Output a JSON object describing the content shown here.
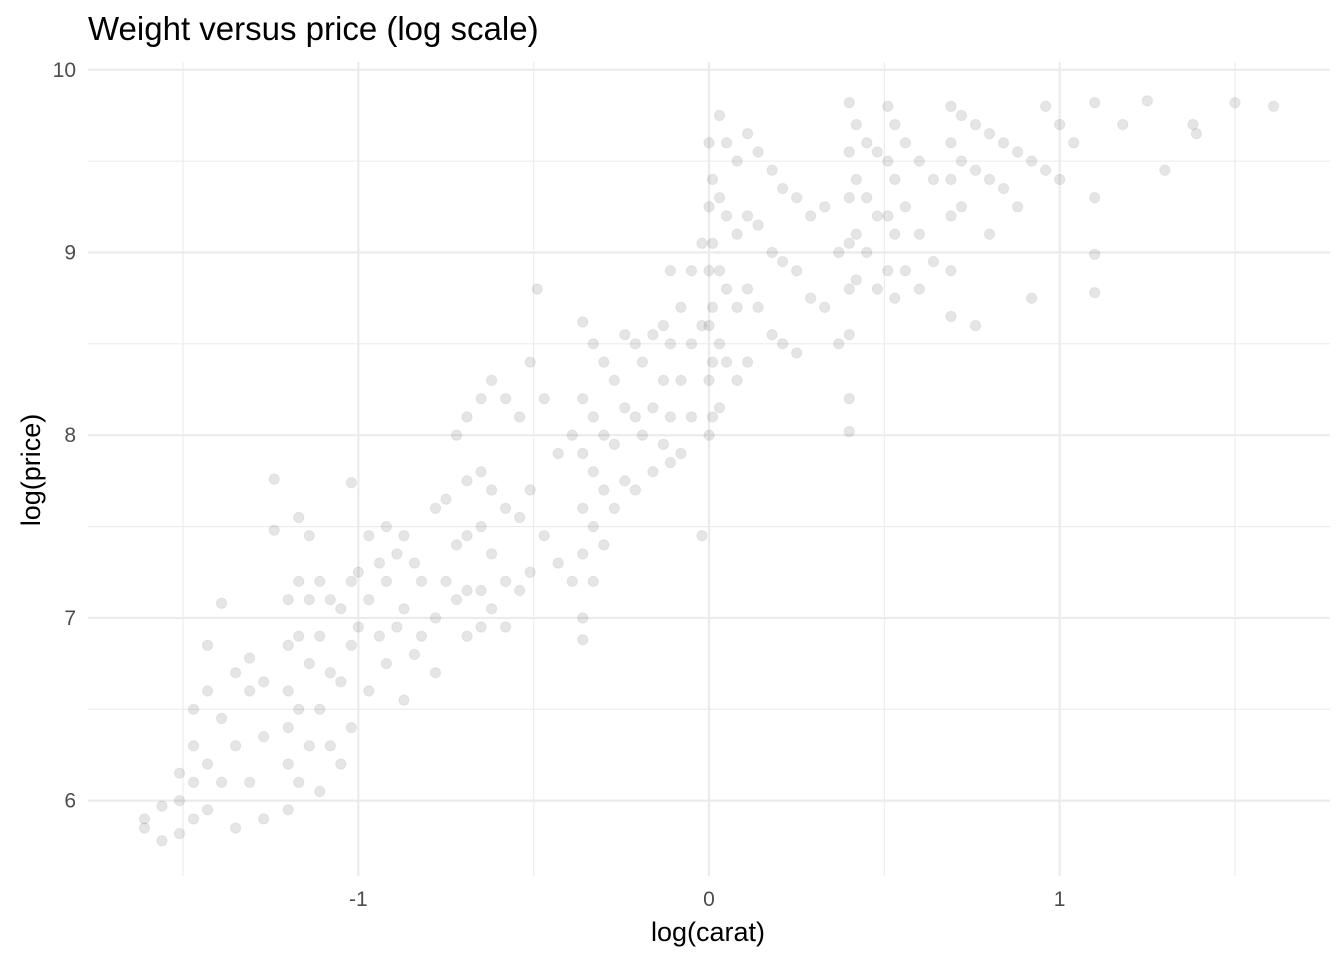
{
  "chart_data": {
    "type": "scatter",
    "title": "Weight versus price (log scale)",
    "xlabel": "log(carat)",
    "ylabel": "log(price)",
    "xlim": [
      -1.61,
      1.61
    ],
    "ylim": [
      5.79,
      9.84
    ],
    "x_ticks": [
      -1,
      0,
      1
    ],
    "x_tick_labels": [
      "-1",
      "0",
      "1"
    ],
    "x_minor_ticks": [
      -1.5,
      -0.5,
      0.5,
      1.5
    ],
    "y_ticks": [
      6,
      7,
      8,
      9,
      10
    ],
    "y_tick_labels": [
      "6",
      "7",
      "8",
      "9",
      "10"
    ],
    "y_minor_ticks": [
      6.5,
      7.5,
      8.5,
      9.5
    ],
    "grid": true,
    "point_color": "#000000",
    "point_alpha": 0.1,
    "series": [
      {
        "points": [
          [
            -1.61,
            5.9
          ],
          [
            -1.61,
            5.85
          ],
          [
            -1.56,
            5.97
          ],
          [
            -1.56,
            5.78
          ],
          [
            -1.51,
            6.15
          ],
          [
            -1.51,
            5.82
          ],
          [
            -1.51,
            6.0
          ],
          [
            -1.47,
            6.5
          ],
          [
            -1.47,
            6.3
          ],
          [
            -1.47,
            6.1
          ],
          [
            -1.47,
            5.9
          ],
          [
            -1.43,
            6.6
          ],
          [
            -1.43,
            6.2
          ],
          [
            -1.43,
            5.95
          ],
          [
            -1.43,
            6.85
          ],
          [
            -1.39,
            7.08
          ],
          [
            -1.39,
            6.45
          ],
          [
            -1.39,
            6.1
          ],
          [
            -1.35,
            6.7
          ],
          [
            -1.35,
            6.3
          ],
          [
            -1.35,
            5.85
          ],
          [
            -1.31,
            6.6
          ],
          [
            -1.31,
            6.1
          ],
          [
            -1.31,
            6.78
          ],
          [
            -1.27,
            6.65
          ],
          [
            -1.27,
            6.35
          ],
          [
            -1.27,
            5.9
          ],
          [
            -1.24,
            7.76
          ],
          [
            -1.24,
            7.48
          ],
          [
            -1.2,
            7.1
          ],
          [
            -1.2,
            6.85
          ],
          [
            -1.2,
            6.6
          ],
          [
            -1.2,
            6.4
          ],
          [
            -1.2,
            6.2
          ],
          [
            -1.2,
            5.95
          ],
          [
            -1.17,
            7.55
          ],
          [
            -1.17,
            7.2
          ],
          [
            -1.17,
            6.9
          ],
          [
            -1.17,
            6.5
          ],
          [
            -1.17,
            6.1
          ],
          [
            -1.14,
            7.45
          ],
          [
            -1.14,
            7.1
          ],
          [
            -1.14,
            6.75
          ],
          [
            -1.14,
            6.3
          ],
          [
            -1.11,
            7.2
          ],
          [
            -1.11,
            6.9
          ],
          [
            -1.11,
            6.5
          ],
          [
            -1.11,
            6.05
          ],
          [
            -1.08,
            7.1
          ],
          [
            -1.08,
            6.7
          ],
          [
            -1.08,
            6.3
          ],
          [
            -1.05,
            7.05
          ],
          [
            -1.05,
            6.65
          ],
          [
            -1.05,
            6.2
          ],
          [
            -1.02,
            7.74
          ],
          [
            -1.02,
            7.2
          ],
          [
            -1.02,
            6.85
          ],
          [
            -1.02,
            6.4
          ],
          [
            -1.0,
            7.25
          ],
          [
            -1.0,
            6.95
          ],
          [
            -0.97,
            7.45
          ],
          [
            -0.97,
            7.1
          ],
          [
            -0.97,
            6.6
          ],
          [
            -0.94,
            7.3
          ],
          [
            -0.94,
            6.9
          ],
          [
            -0.92,
            7.5
          ],
          [
            -0.92,
            7.2
          ],
          [
            -0.92,
            6.75
          ],
          [
            -0.89,
            7.35
          ],
          [
            -0.89,
            6.95
          ],
          [
            -0.87,
            7.45
          ],
          [
            -0.87,
            7.05
          ],
          [
            -0.87,
            6.55
          ],
          [
            -0.84,
            7.3
          ],
          [
            -0.84,
            6.8
          ],
          [
            -0.82,
            7.2
          ],
          [
            -0.82,
            6.9
          ],
          [
            -0.78,
            7.6
          ],
          [
            -0.78,
            7.0
          ],
          [
            -0.78,
            6.7
          ],
          [
            -0.75,
            7.65
          ],
          [
            -0.75,
            7.2
          ],
          [
            -0.72,
            8.0
          ],
          [
            -0.72,
            7.4
          ],
          [
            -0.72,
            7.1
          ],
          [
            -0.69,
            8.1
          ],
          [
            -0.69,
            7.75
          ],
          [
            -0.69,
            7.45
          ],
          [
            -0.69,
            7.15
          ],
          [
            -0.69,
            6.9
          ],
          [
            -0.65,
            8.2
          ],
          [
            -0.65,
            7.8
          ],
          [
            -0.65,
            7.5
          ],
          [
            -0.65,
            7.15
          ],
          [
            -0.65,
            6.95
          ],
          [
            -0.62,
            8.3
          ],
          [
            -0.62,
            7.7
          ],
          [
            -0.62,
            7.35
          ],
          [
            -0.62,
            7.05
          ],
          [
            -0.58,
            8.2
          ],
          [
            -0.58,
            7.6
          ],
          [
            -0.58,
            7.2
          ],
          [
            -0.58,
            6.95
          ],
          [
            -0.54,
            8.1
          ],
          [
            -0.54,
            7.55
          ],
          [
            -0.54,
            7.15
          ],
          [
            -0.51,
            8.4
          ],
          [
            -0.51,
            7.7
          ],
          [
            -0.51,
            7.25
          ],
          [
            -0.49,
            8.8
          ],
          [
            -0.47,
            8.2
          ],
          [
            -0.47,
            7.45
          ],
          [
            -0.43,
            7.9
          ],
          [
            -0.43,
            7.3
          ],
          [
            -0.39,
            8.0
          ],
          [
            -0.39,
            7.2
          ],
          [
            -0.36,
            8.62
          ],
          [
            -0.36,
            8.2
          ],
          [
            -0.36,
            7.9
          ],
          [
            -0.36,
            7.6
          ],
          [
            -0.36,
            7.35
          ],
          [
            -0.36,
            7.0
          ],
          [
            -0.36,
            6.88
          ],
          [
            -0.33,
            8.5
          ],
          [
            -0.33,
            8.1
          ],
          [
            -0.33,
            7.8
          ],
          [
            -0.33,
            7.5
          ],
          [
            -0.33,
            7.2
          ],
          [
            -0.3,
            8.4
          ],
          [
            -0.3,
            8.0
          ],
          [
            -0.3,
            7.7
          ],
          [
            -0.3,
            7.4
          ],
          [
            -0.27,
            8.3
          ],
          [
            -0.27,
            7.95
          ],
          [
            -0.27,
            7.6
          ],
          [
            -0.24,
            8.55
          ],
          [
            -0.24,
            8.15
          ],
          [
            -0.24,
            7.75
          ],
          [
            -0.21,
            8.5
          ],
          [
            -0.21,
            8.1
          ],
          [
            -0.21,
            7.7
          ],
          [
            -0.19,
            8.4
          ],
          [
            -0.19,
            8.0
          ],
          [
            -0.16,
            8.55
          ],
          [
            -0.16,
            8.15
          ],
          [
            -0.16,
            7.8
          ],
          [
            -0.13,
            8.6
          ],
          [
            -0.13,
            8.3
          ],
          [
            -0.13,
            7.95
          ],
          [
            -0.11,
            8.9
          ],
          [
            -0.11,
            8.5
          ],
          [
            -0.11,
            8.1
          ],
          [
            -0.11,
            7.85
          ],
          [
            -0.08,
            8.7
          ],
          [
            -0.08,
            8.3
          ],
          [
            -0.08,
            7.9
          ],
          [
            -0.05,
            8.9
          ],
          [
            -0.05,
            8.5
          ],
          [
            -0.05,
            8.1
          ],
          [
            -0.02,
            9.05
          ],
          [
            -0.02,
            8.6
          ],
          [
            -0.02,
            7.45
          ],
          [
            0.0,
            9.6
          ],
          [
            0.0,
            9.25
          ],
          [
            0.0,
            8.9
          ],
          [
            0.0,
            8.6
          ],
          [
            0.0,
            8.3
          ],
          [
            0.0,
            8.0
          ],
          [
            0.01,
            9.4
          ],
          [
            0.01,
            9.05
          ],
          [
            0.01,
            8.7
          ],
          [
            0.01,
            8.4
          ],
          [
            0.01,
            8.1
          ],
          [
            0.03,
            9.75
          ],
          [
            0.03,
            9.3
          ],
          [
            0.03,
            8.9
          ],
          [
            0.03,
            8.5
          ],
          [
            0.03,
            8.15
          ],
          [
            0.05,
            9.6
          ],
          [
            0.05,
            9.2
          ],
          [
            0.05,
            8.8
          ],
          [
            0.05,
            8.4
          ],
          [
            0.08,
            9.5
          ],
          [
            0.08,
            9.1
          ],
          [
            0.08,
            8.7
          ],
          [
            0.08,
            8.3
          ],
          [
            0.11,
            9.65
          ],
          [
            0.11,
            9.2
          ],
          [
            0.11,
            8.8
          ],
          [
            0.11,
            8.4
          ],
          [
            0.14,
            9.55
          ],
          [
            0.14,
            9.15
          ],
          [
            0.14,
            8.7
          ],
          [
            0.18,
            9.45
          ],
          [
            0.18,
            9.0
          ],
          [
            0.18,
            8.55
          ],
          [
            0.21,
            9.35
          ],
          [
            0.21,
            8.95
          ],
          [
            0.21,
            8.5
          ],
          [
            0.25,
            9.3
          ],
          [
            0.25,
            8.9
          ],
          [
            0.25,
            8.45
          ],
          [
            0.29,
            9.2
          ],
          [
            0.29,
            8.75
          ],
          [
            0.33,
            9.25
          ],
          [
            0.33,
            8.7
          ],
          [
            0.37,
            9.0
          ],
          [
            0.37,
            8.5
          ],
          [
            0.4,
            9.82
          ],
          [
            0.4,
            9.55
          ],
          [
            0.4,
            9.3
          ],
          [
            0.4,
            9.05
          ],
          [
            0.4,
            8.8
          ],
          [
            0.4,
            8.55
          ],
          [
            0.4,
            8.2
          ],
          [
            0.4,
            8.02
          ],
          [
            0.42,
            9.7
          ],
          [
            0.42,
            9.4
          ],
          [
            0.42,
            9.1
          ],
          [
            0.42,
            8.85
          ],
          [
            0.45,
            9.6
          ],
          [
            0.45,
            9.3
          ],
          [
            0.45,
            9.0
          ],
          [
            0.48,
            9.55
          ],
          [
            0.48,
            9.2
          ],
          [
            0.48,
            8.8
          ],
          [
            0.51,
            9.8
          ],
          [
            0.51,
            9.5
          ],
          [
            0.51,
            9.2
          ],
          [
            0.51,
            8.9
          ],
          [
            0.53,
            9.7
          ],
          [
            0.53,
            9.4
          ],
          [
            0.53,
            9.1
          ],
          [
            0.53,
            8.75
          ],
          [
            0.56,
            9.6
          ],
          [
            0.56,
            9.25
          ],
          [
            0.56,
            8.9
          ],
          [
            0.6,
            9.5
          ],
          [
            0.6,
            9.1
          ],
          [
            0.6,
            8.8
          ],
          [
            0.64,
            9.4
          ],
          [
            0.64,
            8.95
          ],
          [
            0.69,
            9.8
          ],
          [
            0.69,
            9.6
          ],
          [
            0.69,
            9.4
          ],
          [
            0.69,
            9.2
          ],
          [
            0.69,
            8.9
          ],
          [
            0.69,
            8.65
          ],
          [
            0.72,
            9.75
          ],
          [
            0.72,
            9.5
          ],
          [
            0.72,
            9.25
          ],
          [
            0.76,
            9.7
          ],
          [
            0.76,
            9.45
          ],
          [
            0.76,
            8.6
          ],
          [
            0.8,
            9.65
          ],
          [
            0.8,
            9.4
          ],
          [
            0.8,
            9.1
          ],
          [
            0.84,
            9.6
          ],
          [
            0.84,
            9.35
          ],
          [
            0.88,
            9.55
          ],
          [
            0.88,
            9.25
          ],
          [
            0.92,
            9.5
          ],
          [
            0.92,
            8.75
          ],
          [
            0.96,
            9.8
          ],
          [
            0.96,
            9.45
          ],
          [
            1.0,
            9.7
          ],
          [
            1.0,
            9.4
          ],
          [
            1.04,
            9.6
          ],
          [
            1.1,
            9.82
          ],
          [
            1.1,
            9.3
          ],
          [
            1.1,
            8.99
          ],
          [
            1.1,
            8.78
          ],
          [
            1.18,
            9.7
          ],
          [
            1.25,
            9.83
          ],
          [
            1.3,
            9.45
          ],
          [
            1.38,
            9.7
          ],
          [
            1.39,
            9.65
          ],
          [
            1.5,
            9.82
          ],
          [
            1.61,
            9.8
          ]
        ]
      }
    ]
  }
}
